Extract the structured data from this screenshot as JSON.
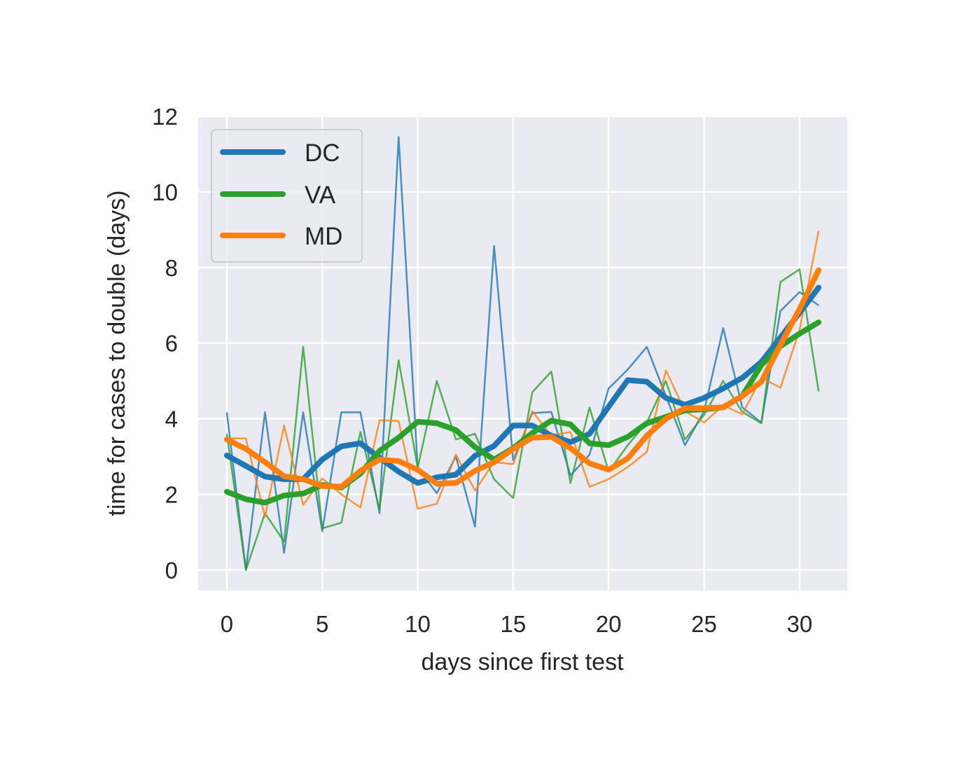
{
  "chart_data": {
    "type": "line",
    "title": "",
    "xlabel": "days since first test",
    "ylabel": "time for cases to double (days)",
    "xlim": [
      -1.5,
      32.5
    ],
    "ylim": [
      -0.55,
      12.0
    ],
    "xticks": [
      0,
      5,
      10,
      15,
      20,
      25,
      30
    ],
    "yticks": [
      0,
      2,
      4,
      6,
      8,
      10,
      12
    ],
    "grid": true,
    "legend_position": "top-left",
    "x": [
      0,
      1,
      2,
      3,
      4,
      5,
      6,
      7,
      8,
      9,
      10,
      11,
      12,
      13,
      14,
      15,
      16,
      17,
      18,
      19,
      20,
      21,
      22,
      23,
      24,
      25,
      26,
      27,
      28,
      29,
      30,
      31
    ],
    "series": [
      {
        "name": "DC",
        "color": "#1f77b4",
        "raw": [
          4.17,
          0.0,
          4.17,
          0.45,
          4.17,
          1.02,
          4.17,
          4.17,
          1.5,
          11.45,
          2.7,
          2.03,
          3.0,
          1.15,
          8.57,
          2.9,
          4.15,
          4.18,
          2.5,
          3.05,
          4.8,
          5.3,
          5.9,
          4.6,
          3.3,
          4.2,
          6.4,
          4.3,
          3.9,
          6.85,
          7.35,
          7.0
        ],
        "smooth": [
          3.03,
          2.75,
          2.47,
          2.4,
          2.4,
          2.92,
          3.27,
          3.35,
          2.97,
          2.6,
          2.3,
          2.45,
          2.52,
          3.02,
          3.28,
          3.82,
          3.82,
          3.55,
          3.38,
          3.6,
          4.32,
          5.02,
          4.98,
          4.55,
          4.37,
          4.55,
          4.8,
          5.08,
          5.5,
          6.15,
          6.8,
          7.47
        ]
      },
      {
        "name": "VA",
        "color": "#2ca02c",
        "raw": [
          3.6,
          0.0,
          1.5,
          0.75,
          5.9,
          1.1,
          1.25,
          3.65,
          1.6,
          5.55,
          2.7,
          5.0,
          3.45,
          3.6,
          2.4,
          1.9,
          4.7,
          5.25,
          2.3,
          4.3,
          2.6,
          3.3,
          3.9,
          5.0,
          3.45,
          4.1,
          5.0,
          4.18,
          3.88,
          7.62,
          7.95,
          4.72
        ]
      },
      {
        "name": "MD",
        "color": "#ff7f0e",
        "raw": [
          3.48,
          3.48,
          1.4,
          3.82,
          1.72,
          2.42,
          2.0,
          1.65,
          3.96,
          3.94,
          1.62,
          1.75,
          3.05,
          2.1,
          2.85,
          2.8,
          4.2,
          3.55,
          3.65,
          2.2,
          2.4,
          2.72,
          3.12,
          5.28,
          4.2,
          3.9,
          4.35,
          4.12,
          5.08,
          4.82,
          6.35,
          8.97
        ]
      }
    ]
  },
  "extra_smooth": {
    "VA": [
      2.07,
      1.87,
      1.78,
      1.97,
      2.02,
      2.25,
      2.18,
      2.55,
      3.15,
      3.5,
      3.92,
      3.88,
      3.7,
      3.25,
      2.92,
      3.22,
      3.62,
      3.95,
      3.85,
      3.35,
      3.3,
      3.52,
      3.88,
      4.05,
      4.22,
      4.25,
      4.3,
      4.6,
      5.42,
      5.92,
      6.25,
      6.55
    ],
    "MD": [
      3.45,
      3.2,
      2.85,
      2.48,
      2.4,
      2.22,
      2.2,
      2.62,
      2.92,
      2.88,
      2.65,
      2.28,
      2.3,
      2.62,
      2.85,
      3.2,
      3.5,
      3.52,
      3.22,
      2.82,
      2.65,
      2.95,
      3.55,
      4.0,
      4.28,
      4.28,
      4.3,
      4.6,
      4.98,
      5.95,
      6.9,
      7.93
    ]
  }
}
